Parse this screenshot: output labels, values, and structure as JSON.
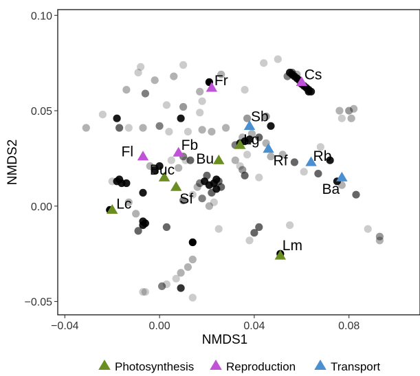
{
  "chart_data": {
    "type": "scatter",
    "xlabel": "NMDS1",
    "ylabel": "NMDS2",
    "xlim": [
      -0.043,
      0.11
    ],
    "ylim": [
      -0.057,
      0.103
    ],
    "x_ticks": [
      -0.04,
      0.0,
      0.04,
      0.08
    ],
    "x_tick_labels": [
      "−0.04",
      "0.00",
      "0.04",
      "0.08"
    ],
    "y_ticks": [
      -0.05,
      0.0,
      0.05,
      0.1
    ],
    "y_tick_labels": [
      "−0.05",
      "0.00",
      "0.05",
      "0.10"
    ],
    "grid": false,
    "legend_position": "bottom",
    "colors": {
      "Photosynthesis": "#6b8e23",
      "Reproduction": "#c052d8",
      "Transport": "#4a8fd0",
      "background_points": "#000000"
    },
    "series": [
      {
        "name": "Photosynthesis",
        "points": [
          {
            "label": "Lc",
            "x": -0.02,
            "y": -0.002
          },
          {
            "label": "Buc",
            "x": 0.002,
            "y": 0.015
          },
          {
            "label": "Sf",
            "x": 0.007,
            "y": 0.01
          },
          {
            "label": "Bu",
            "x": 0.025,
            "y": 0.024
          },
          {
            "label": "Lg",
            "x": 0.034,
            "y": 0.032
          },
          {
            "label": "Lm",
            "x": 0.051,
            "y": -0.026
          }
        ]
      },
      {
        "name": "Reproduction",
        "points": [
          {
            "label": "Fr",
            "x": 0.022,
            "y": 0.062
          },
          {
            "label": "Cs",
            "x": 0.06,
            "y": 0.065
          },
          {
            "label": "Fl",
            "x": -0.007,
            "y": 0.026
          },
          {
            "label": "Fb",
            "x": 0.008,
            "y": 0.028
          }
        ]
      },
      {
        "name": "Transport",
        "points": [
          {
            "label": "Sb",
            "x": 0.038,
            "y": 0.042
          },
          {
            "label": "Rf",
            "x": 0.046,
            "y": 0.03
          },
          {
            "label": "Rb",
            "x": 0.064,
            "y": 0.023
          },
          {
            "label": "Ba",
            "x": 0.077,
            "y": 0.015
          }
        ]
      }
    ],
    "background_points": [
      [
        -0.018,
        0.046,
        0.9
      ],
      [
        -0.031,
        0.041,
        0.3
      ],
      [
        -0.009,
        0.07,
        0.2
      ],
      [
        -0.008,
        0.073,
        0.2
      ],
      [
        -0.002,
        0.066,
        0.3
      ],
      [
        0.006,
        0.068,
        0.3
      ],
      [
        0.01,
        0.074,
        0.2
      ],
      [
        -0.014,
        0.061,
        0.3
      ],
      [
        -0.006,
        0.059,
        0.5
      ],
      [
        0.003,
        0.053,
        0.2
      ],
      [
        0.01,
        0.052,
        0.4
      ],
      [
        -0.024,
        0.048,
        0.2
      ],
      [
        -0.013,
        0.041,
        0.2
      ],
      [
        -0.007,
        0.041,
        0.3
      ],
      [
        -0.017,
        0.041,
        0.6
      ],
      [
        0.0,
        0.042,
        0.5
      ],
      [
        0.004,
        0.039,
        0.2
      ],
      [
        0.009,
        0.046,
        0.9
      ],
      [
        0.012,
        0.039,
        0.2
      ],
      [
        0.017,
        0.06,
        0.3
      ],
      [
        0.018,
        0.055,
        0.2
      ],
      [
        0.017,
        0.049,
        0.2
      ],
      [
        0.018,
        0.04,
        0.3
      ],
      [
        0.022,
        0.039,
        0.3
      ],
      [
        0.021,
        0.065,
        1.0
      ],
      [
        0.026,
        0.069,
        0.3
      ],
      [
        0.036,
        0.061,
        0.2
      ],
      [
        0.044,
        0.075,
        0.2
      ],
      [
        0.05,
        0.077,
        0.2
      ],
      [
        0.037,
        0.046,
        0.4
      ],
      [
        0.045,
        0.047,
        0.4
      ],
      [
        0.047,
        0.042,
        0.9
      ],
      [
        0.045,
        0.033,
        0.3
      ],
      [
        0.028,
        0.041,
        0.3
      ],
      [
        0.032,
        0.032,
        0.3
      ],
      [
        0.037,
        0.027,
        0.2
      ],
      [
        0.034,
        0.021,
        0.2
      ],
      [
        0.036,
        0.016,
        0.6
      ],
      [
        0.042,
        0.015,
        0.2
      ],
      [
        0.047,
        0.026,
        0.3
      ],
      [
        0.052,
        0.027,
        0.3
      ],
      [
        0.057,
        0.023,
        0.6
      ],
      [
        0.061,
        0.018,
        0.2
      ],
      [
        0.068,
        0.031,
        0.2
      ],
      [
        0.072,
        0.024,
        0.9
      ],
      [
        0.067,
        0.017,
        0.6
      ],
      [
        0.075,
        0.013,
        0.9
      ],
      [
        0.077,
        0.011,
        0.3
      ],
      [
        0.083,
        0.006,
        0.6
      ],
      [
        0.076,
        0.05,
        0.3
      ],
      [
        0.077,
        0.046,
        0.2
      ],
      [
        0.08,
        0.05,
        0.4
      ],
      [
        0.081,
        0.046,
        0.3
      ],
      [
        0.082,
        0.051,
        0.3
      ],
      [
        0.088,
        -0.012,
        0.2
      ],
      [
        0.093,
        -0.016,
        0.4
      ],
      [
        0.093,
        -0.018,
        0.3
      ],
      [
        0.055,
        -0.01,
        0.2
      ],
      [
        0.042,
        -0.011,
        0.6
      ],
      [
        0.04,
        -0.014,
        0.6
      ],
      [
        0.038,
        -0.018,
        0.2
      ],
      [
        0.051,
        -0.025,
        1.0
      ],
      [
        0.025,
        -0.012,
        0.2
      ],
      [
        0.014,
        -0.019,
        1.0
      ],
      [
        0.014,
        -0.028,
        0.3
      ],
      [
        0.012,
        -0.032,
        0.3
      ],
      [
        0.009,
        -0.035,
        0.3
      ],
      [
        0.007,
        -0.038,
        0.2
      ],
      [
        0.003,
        -0.041,
        0.2
      ],
      [
        0.009,
        -0.043,
        0.8
      ],
      [
        0.014,
        -0.048,
        0.2
      ],
      [
        -0.006,
        -0.045,
        0.2
      ],
      [
        -0.007,
        -0.045,
        0.2
      ],
      [
        0.001,
        -0.042,
        0.5
      ],
      [
        -0.006,
        -0.009,
        0.9
      ],
      [
        -0.007,
        -0.008,
        0.9
      ],
      [
        -0.007,
        -0.01,
        0.9
      ],
      [
        -0.009,
        -0.013,
        0.6
      ],
      [
        -0.01,
        -0.004,
        0.3
      ],
      [
        -0.007,
        0.007,
        0.9
      ],
      [
        -0.016,
        0.012,
        0.9
      ],
      [
        -0.017,
        0.014,
        0.9
      ],
      [
        -0.018,
        0.013,
        0.9
      ],
      [
        -0.014,
        0.012,
        0.9
      ],
      [
        -0.02,
        0.013,
        0.2
      ],
      [
        -0.013,
        0.002,
        0.3
      ],
      [
        -0.021,
        -0.002,
        1.0
      ],
      [
        0.003,
        -0.011,
        0.6
      ],
      [
        0.01,
        0.003,
        0.5
      ],
      [
        0.014,
        0.006,
        0.2
      ],
      [
        0.016,
        0.01,
        0.3
      ],
      [
        0.017,
        0.012,
        0.5
      ],
      [
        0.019,
        0.013,
        0.9
      ],
      [
        0.021,
        0.011,
        0.9
      ],
      [
        0.023,
        0.012,
        0.9
      ],
      [
        0.024,
        0.014,
        0.9
      ],
      [
        0.024,
        0.009,
        0.9
      ],
      [
        0.02,
        0.016,
        0.6
      ],
      [
        0.022,
        0.007,
        0.6
      ],
      [
        0.025,
        0.013,
        0.6
      ],
      [
        0.018,
        0.004,
        0.5
      ],
      [
        0.026,
        0.01,
        0.6
      ],
      [
        0.021,
        0.0,
        0.3
      ],
      [
        0.023,
        0.002,
        0.2
      ],
      [
        0.013,
        0.024,
        0.6
      ],
      [
        0.01,
        0.026,
        0.5
      ],
      [
        0.011,
        0.024,
        0.2
      ],
      [
        -0.002,
        0.019,
        0.9
      ],
      [
        -0.004,
        0.021,
        0.3
      ],
      [
        0.0,
        0.021,
        0.9
      ],
      [
        0.005,
        0.024,
        0.2
      ],
      [
        0.008,
        0.02,
        0.3
      ],
      [
        0.032,
        0.024,
        0.3
      ],
      [
        0.035,
        0.036,
        0.3
      ],
      [
        0.039,
        0.038,
        0.3
      ],
      [
        0.042,
        0.036,
        0.6
      ],
      [
        0.055,
        0.07,
        0.9
      ],
      [
        0.056,
        0.069,
        0.9
      ],
      [
        0.057,
        0.068,
        0.9
      ],
      [
        0.058,
        0.067,
        0.9
      ],
      [
        0.059,
        0.066,
        0.9
      ],
      [
        0.06,
        0.064,
        0.9
      ],
      [
        0.061,
        0.063,
        0.9
      ],
      [
        0.062,
        0.062,
        0.9
      ],
      [
        0.063,
        0.06,
        0.9
      ],
      [
        0.063,
        0.061,
        0.9
      ],
      [
        0.064,
        0.06,
        0.9
      ],
      [
        0.056,
        0.07,
        0.6
      ],
      [
        0.054,
        0.068,
        0.5
      ],
      [
        0.058,
        0.069,
        0.3
      ],
      [
        0.035,
        0.019,
        0.4
      ],
      [
        0.032,
        0.032,
        0.3
      ],
      [
        0.034,
        0.033,
        0.9
      ],
      [
        0.038,
        0.035,
        0.9
      ],
      [
        0.036,
        0.034,
        0.9
      ]
    ]
  }
}
